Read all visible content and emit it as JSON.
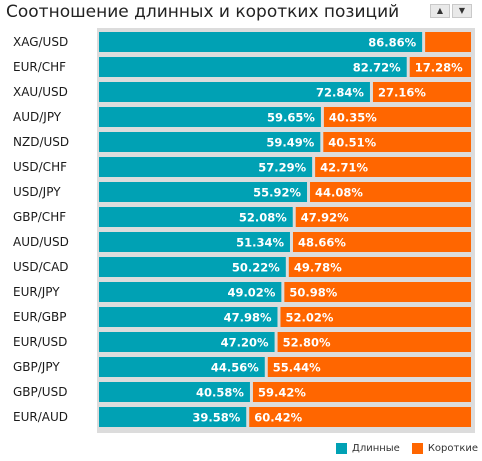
{
  "title": "Соотношение длинных и коротких позиций",
  "controls": {
    "up_icon": "▲",
    "down_icon": "▼"
  },
  "colors": {
    "long": "#00a1b4",
    "short": "#ff6600",
    "track": "#dcdcdc",
    "bar_text": "#ffffff",
    "label_text": "#1a1a1a"
  },
  "chart_data": {
    "type": "bar",
    "orientation": "horizontal",
    "stacked": true,
    "categories": [
      "XAG/USD",
      "EUR/CHF",
      "XAU/USD",
      "AUD/JPY",
      "NZD/USD",
      "USD/CHF",
      "USD/JPY",
      "GBP/CHF",
      "AUD/USD",
      "USD/CAD",
      "EUR/JPY",
      "EUR/GBP",
      "EUR/USD",
      "GBP/JPY",
      "GBP/USD",
      "EUR/AUD"
    ],
    "series": [
      {
        "name": "Длинные",
        "color": "#00a1b4",
        "values": [
          86.86,
          82.72,
          72.84,
          59.65,
          59.49,
          57.29,
          55.92,
          52.08,
          51.34,
          50.22,
          49.02,
          47.98,
          47.2,
          44.56,
          40.58,
          39.58
        ],
        "labels": [
          "86.86%",
          "82.72%",
          "72.84%",
          "59.65%",
          "59.49%",
          "57.29%",
          "55.92%",
          "52.08%",
          "51.34%",
          "50.22%",
          "49.02%",
          "47.98%",
          "47.20%",
          "44.56%",
          "40.58%",
          "39.58%"
        ]
      },
      {
        "name": "Короткие",
        "color": "#ff6600",
        "values": [
          13.14,
          17.28,
          27.16,
          40.35,
          40.51,
          42.71,
          44.08,
          47.92,
          48.66,
          49.78,
          50.98,
          52.02,
          52.8,
          55.44,
          59.42,
          60.42
        ],
        "labels": [
          "",
          "17.28%",
          "27.16%",
          "40.35%",
          "40.51%",
          "42.71%",
          "44.08%",
          "47.92%",
          "48.66%",
          "49.78%",
          "50.98%",
          "52.02%",
          "52.80%",
          "55.44%",
          "59.42%",
          "60.42%"
        ]
      }
    ],
    "xlim": [
      0,
      100
    ],
    "grid": false,
    "legend_position": "bottom-right"
  },
  "legend": {
    "long_label": "Длинные",
    "short_label": "Короткие"
  }
}
